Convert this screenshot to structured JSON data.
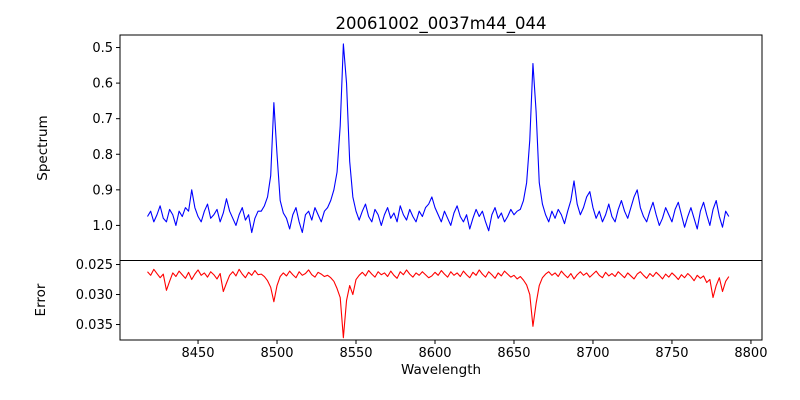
{
  "figure": {
    "background_color": "#ffffff",
    "frame_color": "#000000",
    "text_color": "#000000"
  },
  "chart_data": {
    "type": "line",
    "title": "20061002_0037m44_044",
    "xlabel": "Wavelength",
    "grid": false,
    "legend": "none",
    "xlim": [
      8400.6,
      8807.0
    ],
    "xticks": [
      8450,
      8500,
      8550,
      8600,
      8650,
      8700,
      8750,
      8800
    ],
    "xtick_labels": [
      "8450",
      "8500",
      "8550",
      "8600",
      "8650",
      "8700",
      "8750",
      "8800"
    ],
    "x_start": 8418,
    "x_step": 2,
    "panels": [
      {
        "name": "spectrum",
        "ylabel": "Spectrum",
        "line_color": "#0000ff",
        "ylim": [
          0.4648,
          1.0986
        ],
        "yticks": [
          0.5,
          0.6,
          0.7,
          0.8,
          0.9,
          1.0
        ],
        "ytick_labels": [
          "0.5",
          "0.6",
          "0.7",
          "0.8",
          "0.9",
          "1.0"
        ],
        "notes": "noisy stellar spectrum, continuum ~0.97, CaII triplet absorption dips at 8498 (0.65), 8542 (0.49), 8662 (0.55)"
      },
      {
        "name": "error",
        "ylabel": "Error",
        "line_color": "#ff0000",
        "ylim": [
          0.02433,
          0.03758
        ],
        "yticks": [
          0.025,
          0.03,
          0.035
        ],
        "ytick_labels": [
          "0.025",
          "0.030",
          "0.035"
        ],
        "notes": "error baseline ~0.0265 with peaks 0.031/0.037/0.035 at the absorption lines"
      }
    ],
    "series": [
      {
        "name": "spectrum",
        "panel": "spectrum",
        "values": [
          0.975,
          0.96,
          0.99,
          0.97,
          0.945,
          0.98,
          0.99,
          0.955,
          0.97,
          1.0,
          0.96,
          0.975,
          0.95,
          0.96,
          0.9,
          0.95,
          0.975,
          0.99,
          0.96,
          0.94,
          0.98,
          0.97,
          0.955,
          0.99,
          0.965,
          0.925,
          0.96,
          0.98,
          1.0,
          0.97,
          0.95,
          0.985,
          0.97,
          1.02,
          0.98,
          0.96,
          0.96,
          0.945,
          0.92,
          0.86,
          0.655,
          0.8,
          0.93,
          0.965,
          0.98,
          1.01,
          0.97,
          0.95,
          0.99,
          1.02,
          0.97,
          0.96,
          0.985,
          0.95,
          0.97,
          0.99,
          0.96,
          0.95,
          0.93,
          0.9,
          0.85,
          0.72,
          0.49,
          0.6,
          0.82,
          0.92,
          0.96,
          0.985,
          0.96,
          0.94,
          0.975,
          0.99,
          0.955,
          0.97,
          1.0,
          0.97,
          0.95,
          0.98,
          0.965,
          0.99,
          0.945,
          0.97,
          0.985,
          0.955,
          0.975,
          0.99,
          0.96,
          0.975,
          0.95,
          0.94,
          0.92,
          0.95,
          0.97,
          0.99,
          0.96,
          0.98,
          1.0,
          0.965,
          0.945,
          0.975,
          0.99,
          0.97,
          1.01,
          0.98,
          0.955,
          0.975,
          0.96,
          0.99,
          1.015,
          0.97,
          0.95,
          0.98,
          0.965,
          0.99,
          0.975,
          0.955,
          0.97,
          0.96,
          0.955,
          0.93,
          0.88,
          0.76,
          0.545,
          0.68,
          0.88,
          0.94,
          0.97,
          0.99,
          0.96,
          0.98,
          0.955,
          0.97,
          0.995,
          0.96,
          0.93,
          0.875,
          0.94,
          0.97,
          0.95,
          0.92,
          0.905,
          0.95,
          0.98,
          0.96,
          0.99,
          0.97,
          0.94,
          0.975,
          0.99,
          0.955,
          0.93,
          0.96,
          0.98,
          0.95,
          0.92,
          0.9,
          0.95,
          0.975,
          0.99,
          0.96,
          0.935,
          0.97,
          1.0,
          0.98,
          0.95,
          0.97,
          0.99,
          0.955,
          0.935,
          0.97,
          1.005,
          0.975,
          0.95,
          0.98,
          1.01,
          0.96,
          0.935,
          0.97,
          1.0,
          0.955,
          0.93,
          0.975,
          1.005,
          0.96,
          0.975
        ]
      },
      {
        "name": "error",
        "panel": "error",
        "values": [
          0.0262,
          0.0268,
          0.0258,
          0.0265,
          0.0272,
          0.0266,
          0.0293,
          0.0278,
          0.0264,
          0.027,
          0.0261,
          0.0267,
          0.0273,
          0.0263,
          0.0275,
          0.0266,
          0.0259,
          0.0268,
          0.0264,
          0.0271,
          0.0262,
          0.0267,
          0.0274,
          0.0265,
          0.0295,
          0.0281,
          0.0268,
          0.0262,
          0.0269,
          0.0258,
          0.0266,
          0.0272,
          0.0263,
          0.0268,
          0.026,
          0.0267,
          0.0266,
          0.027,
          0.0277,
          0.0288,
          0.0312,
          0.0285,
          0.027,
          0.0264,
          0.0269,
          0.0261,
          0.0267,
          0.0272,
          0.0262,
          0.0268,
          0.0265,
          0.0259,
          0.0267,
          0.0271,
          0.0263,
          0.0266,
          0.027,
          0.0268,
          0.0272,
          0.0278,
          0.029,
          0.0305,
          0.0372,
          0.031,
          0.0285,
          0.03,
          0.0275,
          0.0268,
          0.0263,
          0.0269,
          0.026,
          0.0266,
          0.0271,
          0.0262,
          0.0267,
          0.0264,
          0.027,
          0.0261,
          0.0268,
          0.0273,
          0.0262,
          0.0267,
          0.0259,
          0.0266,
          0.0271,
          0.0264,
          0.0268,
          0.0262,
          0.0267,
          0.0272,
          0.0269,
          0.0263,
          0.0268,
          0.026,
          0.0266,
          0.0271,
          0.0262,
          0.0268,
          0.0264,
          0.027,
          0.0261,
          0.0267,
          0.0272,
          0.0263,
          0.0268,
          0.0259,
          0.0266,
          0.0271,
          0.0262,
          0.0267,
          0.0273,
          0.0264,
          0.0269,
          0.0261,
          0.0266,
          0.0271,
          0.0268,
          0.0274,
          0.027,
          0.0276,
          0.0284,
          0.03,
          0.0353,
          0.0315,
          0.0285,
          0.0272,
          0.0266,
          0.0262,
          0.0268,
          0.0264,
          0.027,
          0.0261,
          0.0267,
          0.0272,
          0.0265,
          0.0274,
          0.0267,
          0.0262,
          0.0268,
          0.0264,
          0.0271,
          0.0266,
          0.0261,
          0.0268,
          0.0272,
          0.0263,
          0.0269,
          0.0265,
          0.027,
          0.0262,
          0.0267,
          0.0272,
          0.0264,
          0.0269,
          0.0274,
          0.0266,
          0.0262,
          0.0268,
          0.0273,
          0.0265,
          0.027,
          0.0263,
          0.0268,
          0.0274,
          0.0266,
          0.0271,
          0.0264,
          0.0269,
          0.0275,
          0.0267,
          0.0272,
          0.0265,
          0.027,
          0.0277,
          0.0268,
          0.0273,
          0.0269,
          0.028,
          0.0275,
          0.0305,
          0.0285,
          0.0272,
          0.0295,
          0.0278,
          0.027
        ]
      }
    ]
  }
}
